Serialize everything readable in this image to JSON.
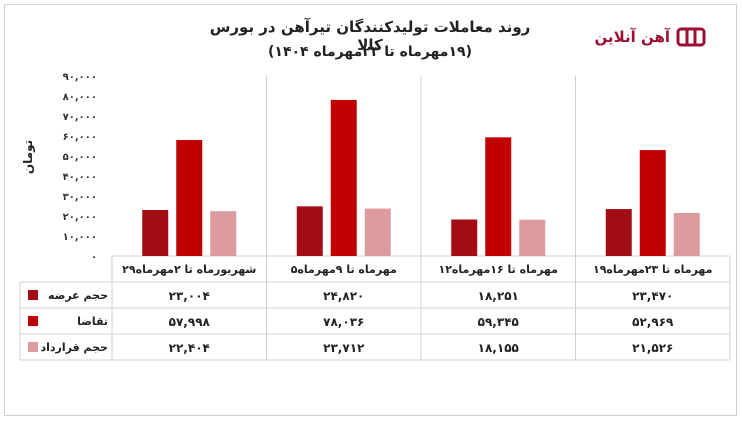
{
  "header": {
    "title": "روند معاملات تولیدکنندگان تیرآهن در بورس کالا",
    "subtitle": "(۱۹مهرماه تا ۲۳مهرماه ۱۴۰۴)",
    "logo_text": "آهن آنلاین",
    "logo_color": "#9c1133"
  },
  "chart_data": {
    "type": "bar",
    "ylabel": "تومان",
    "ylim": [
      0,
      90000
    ],
    "ytick_labels": [
      "۰",
      "۱۰,۰۰۰",
      "۲۰,۰۰۰",
      "۳۰,۰۰۰",
      "۴۰,۰۰۰",
      "۵۰,۰۰۰",
      "۶۰,۰۰۰",
      "۷۰,۰۰۰",
      "۸۰,۰۰۰",
      "۹۰,۰۰۰"
    ],
    "categories": [
      "۲۹شهریورماه تا ۲مهرماه",
      "۵مهرماه تا ۹مهرماه",
      "۱۲مهرماه تا ۱۶مهرماه",
      "۱۹مهرماه تا ۲۳مهرماه"
    ],
    "series": [
      {
        "name": "حجم عرضه",
        "color": "#a10d12",
        "values": [
          23004,
          24820,
          18251,
          23470
        ],
        "labels": [
          "۲۳,۰۰۴",
          "۲۴,۸۲۰",
          "۱۸,۲۵۱",
          "۲۳,۴۷۰"
        ]
      },
      {
        "name": "تقاضا",
        "color": "#c00000",
        "values": [
          57998,
          78036,
          59345,
          52969
        ],
        "labels": [
          "۵۷,۹۹۸",
          "۷۸,۰۳۶",
          "۵۹,۳۴۵",
          "۵۲,۹۶۹"
        ]
      },
      {
        "name": "حجم قرارداد",
        "color": "#dc9b9e",
        "values": [
          22404,
          23712,
          18155,
          21526
        ],
        "labels": [
          "۲۲,۴۰۴",
          "۲۳,۷۱۲",
          "۱۸,۱۵۵",
          "۲۱,۵۲۶"
        ]
      }
    ],
    "grid": false,
    "legend": "table-left"
  }
}
